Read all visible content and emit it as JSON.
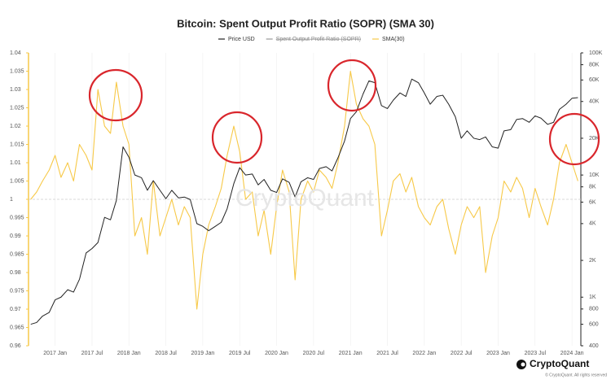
{
  "chart_data": {
    "type": "line",
    "title": "Bitcoin: Spent Output Profit Ratio (SOPR) (SMA 30)",
    "hidden_series_name": "Spent Output Profit Ratio (SOPR)",
    "watermark": "CryptoQuant",
    "brand": "CryptoQuant",
    "copyright": "© CryptoQuant. All rights reserved",
    "x": [
      2016.67,
      2016.75,
      2016.83,
      2016.92,
      2017.0,
      2017.08,
      2017.17,
      2017.25,
      2017.33,
      2017.42,
      2017.5,
      2017.58,
      2017.67,
      2017.75,
      2017.83,
      2017.92,
      2018.0,
      2018.08,
      2018.17,
      2018.25,
      2018.33,
      2018.42,
      2018.5,
      2018.58,
      2018.67,
      2018.75,
      2018.83,
      2018.92,
      2019.0,
      2019.08,
      2019.17,
      2019.25,
      2019.33,
      2019.42,
      2019.5,
      2019.58,
      2019.67,
      2019.75,
      2019.83,
      2019.92,
      2020.0,
      2020.08,
      2020.17,
      2020.25,
      2020.33,
      2020.42,
      2020.5,
      2020.58,
      2020.67,
      2020.75,
      2020.83,
      2020.92,
      2021.0,
      2021.08,
      2021.17,
      2021.25,
      2021.33,
      2021.42,
      2021.5,
      2021.58,
      2021.67,
      2021.75,
      2021.83,
      2021.92,
      2022.0,
      2022.08,
      2022.17,
      2022.25,
      2022.33,
      2022.42,
      2022.5,
      2022.58,
      2022.67,
      2022.75,
      2022.83,
      2022.92,
      2023.0,
      2023.08,
      2023.17,
      2023.25,
      2023.33,
      2023.42,
      2023.5,
      2023.58,
      2023.67,
      2023.75,
      2023.83,
      2023.92,
      2024.0,
      2024.08
    ],
    "series": [
      {
        "name": "Price USD",
        "color": "#222222",
        "axis": "y2",
        "values": [
          600,
          620,
          700,
          750,
          950,
          1000,
          1150,
          1100,
          1400,
          2300,
          2500,
          2800,
          4500,
          4300,
          6200,
          17000,
          14000,
          10000,
          9500,
          7500,
          9000,
          7500,
          6400,
          7500,
          6500,
          6600,
          6300,
          4000,
          3800,
          3500,
          3800,
          4100,
          5300,
          8500,
          11500,
          10000,
          10200,
          8300,
          9200,
          7500,
          7200,
          9300,
          8700,
          6600,
          8800,
          9500,
          9200,
          11300,
          11700,
          10800,
          13800,
          19000,
          29000,
          33000,
          46000,
          59000,
          57000,
          37000,
          35000,
          41000,
          47000,
          44000,
          61000,
          57000,
          47000,
          38000,
          44000,
          45000,
          38000,
          30000,
          20000,
          23000,
          20000,
          19500,
          20500,
          17000,
          16600,
          23000,
          23500,
          28500,
          29000,
          27000,
          30500,
          29200,
          26000,
          27000,
          34500,
          38000,
          42500,
          43000
        ]
      },
      {
        "name": "SMA(30)",
        "color": "#f7c948",
        "values": [
          1.0,
          1.002,
          1.005,
          1.008,
          1.012,
          1.006,
          1.01,
          1.005,
          1.015,
          1.012,
          1.008,
          1.03,
          1.02,
          1.018,
          1.032,
          1.02,
          1.015,
          0.99,
          0.995,
          0.985,
          1.005,
          0.99,
          0.995,
          1.0,
          0.993,
          0.998,
          0.995,
          0.97,
          0.985,
          0.993,
          0.998,
          1.003,
          1.012,
          1.02,
          1.013,
          1.0,
          1.002,
          0.99,
          0.997,
          0.985,
          0.998,
          1.008,
          1.002,
          0.978,
          1.0,
          1.005,
          1.002,
          1.008,
          1.006,
          1.003,
          1.01,
          1.02,
          1.035,
          1.026,
          1.022,
          1.02,
          1.015,
          0.99,
          0.997,
          1.005,
          1.007,
          1.002,
          1.006,
          0.998,
          0.995,
          0.993,
          0.998,
          1.0,
          0.992,
          0.985,
          0.993,
          0.998,
          0.995,
          0.998,
          0.98,
          0.99,
          0.995,
          1.005,
          1.002,
          1.006,
          1.003,
          0.995,
          1.003,
          0.998,
          0.993,
          1.0,
          1.01,
          1.015,
          1.01,
          1.005
        ]
      }
    ],
    "reference_line": 1,
    "xlim": [
      2016.64,
      2024.12
    ],
    "xticks": [
      {
        "value": 2017,
        "label": "2017 Jan"
      },
      {
        "value": 2017.5,
        "label": "2017 Jul"
      },
      {
        "value": 2018,
        "label": "2018 Jan"
      },
      {
        "value": 2018.5,
        "label": "2018 Jul"
      },
      {
        "value": 2019,
        "label": "2019 Jan"
      },
      {
        "value": 2019.5,
        "label": "2019 Jul"
      },
      {
        "value": 2020,
        "label": "2020 Jan"
      },
      {
        "value": 2020.5,
        "label": "2020 Jul"
      },
      {
        "value": 2021,
        "label": "2021 Jan"
      },
      {
        "value": 2021.5,
        "label": "2021 Jul"
      },
      {
        "value": 2022,
        "label": "2022 Jan"
      },
      {
        "value": 2022.5,
        "label": "2022 Jul"
      },
      {
        "value": 2023,
        "label": "2023 Jan"
      },
      {
        "value": 2023.5,
        "label": "2023 Jul"
      },
      {
        "value": 2024,
        "label": "2024 Jan"
      }
    ],
    "ylim": [
      0.96,
      1.04
    ],
    "yticks": [
      0.96,
      0.965,
      0.97,
      0.975,
      0.98,
      0.985,
      0.99,
      0.995,
      1,
      1.005,
      1.01,
      1.015,
      1.02,
      1.025,
      1.03,
      1.035,
      1.04
    ],
    "y2lim": [
      400,
      100000
    ],
    "y2log": true,
    "y2ticks": [
      400,
      600,
      800,
      {
        "value": 1000,
        "label": "1K"
      },
      {
        "value": 2000,
        "label": "2K"
      },
      {
        "value": 4000,
        "label": "4K"
      },
      {
        "value": 6000,
        "label": "6K"
      },
      {
        "value": 8000,
        "label": "8K"
      },
      {
        "value": 10000,
        "label": "10K"
      },
      {
        "value": 20000,
        "label": "20K"
      },
      {
        "value": 40000,
        "label": "40K"
      },
      {
        "value": 60000,
        "label": "60K"
      },
      {
        "value": 80000,
        "label": "80K"
      },
      {
        "value": 100000,
        "label": "100K"
      }
    ],
    "grid": true
  }
}
